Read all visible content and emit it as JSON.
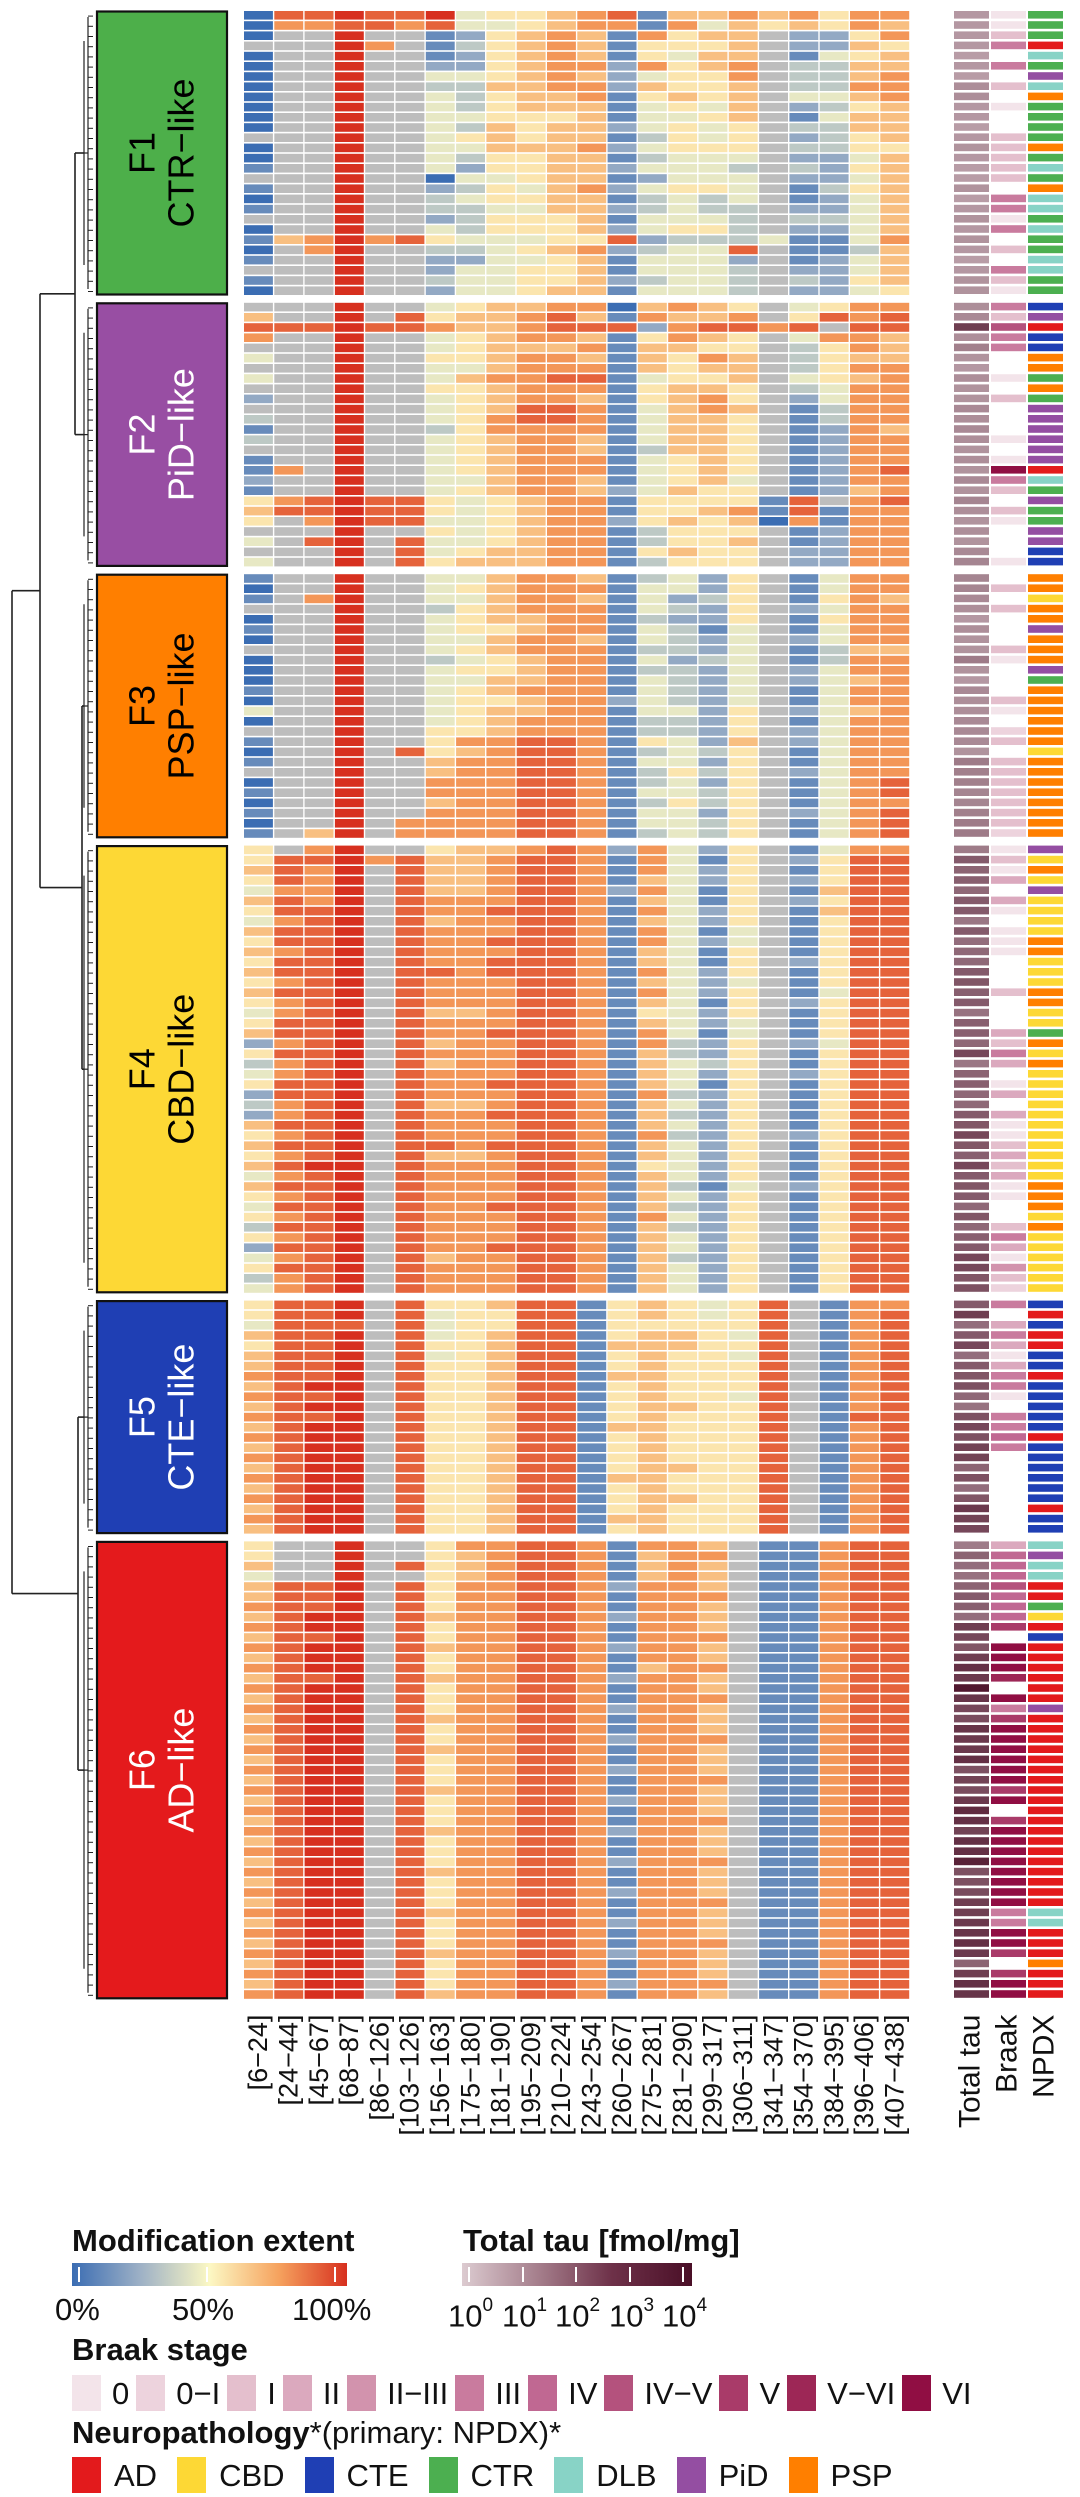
{
  "chart_data": {
    "type": "heatmap",
    "title": "",
    "columns": [
      "[6−24]",
      "[24−44]",
      "[45−67]",
      "[68−87]",
      "[86−126]",
      "[103−126]",
      "[156−163]",
      "[175−180]",
      "[181−190]",
      "[195−209]",
      "[210−224]",
      "[243−254]",
      "[260−267]",
      "[275−281]",
      "[281−290]",
      "[299−317]",
      "[306−311]",
      "[341−347]",
      "[354−370]",
      "[384−395]",
      "[396−406]",
      "[407−438]"
    ],
    "annotation_columns": [
      "Total tau",
      "Braak",
      "NPDX"
    ],
    "encoding": {
      "row_format": "heat|tau_log10_x10|braak_index|npdx_code",
      "heat": "22 digits, each 0-9 = modification extent 0%..100%, '-' = missing",
      "braak": "index into braak_stages, 'a' = 10, '.' = none",
      "npdx": {
        "A": "AD",
        "B": "CBD",
        "E": "CTE",
        "C": "CTR",
        "D": "DLB",
        "P": "PiD",
        "S": "PSP"
      }
    },
    "clusters": [
      {
        "id": "F1",
        "name": "CTR-like",
        "label_line1": "F1",
        "label_line2": "CTR−like",
        "color": "#4daf4a",
        "text_color": "#000000",
        "rows": [
          "0889889455678166767577|11|0|C",
          "0778878445677174656576|11|0|C",
          "0--9--12567617566-2257|11|2|C",
          "---97-13567615556-2265|11|5|A",
          "0--9--12567615466-1456|10|.|D",
          "0--9--22567727567-3366|11|5|C",
          "0--9--44567624557-3367|10|.|P",
          "0--9--33667726556-3377|13|2|D",
          "0--9--43566715656-4467|13|.|S",
          "0--9--43566614546-2356|11|0|C",
          "0--9--44555614456-1466|11|.|C",
          "0--9--43656624545-3366|10|.|C",
          "---9--45656613545-2356|11|2|C",
          "0--9--44666724555-3355|12|2|S",
          "0--9--43556613444-2246|11|2|C",
          "1--9--42556624443-3256|10|2|D",
          "---9--04456612444-2246|10|2|C",
          "1--9--23546724554-1356|12|.|S",
          "0--9--34556613434-1246|10|5|D",
          "1--9--33446623433-2246|11|5|D",
          "---9--23555614443-3346|12|0|C",
          "0--9--43555624553-2246|11|5|D",
          "1679785444558233341147|12|.|C",
          "0-79--33456723448-1136|11|2|C",
          "1--9--22445614442-1246|10|.|D",
          "---9--24455614443-2246|11|5|D",
          "1--9--34455623443-3256|12|2|C",
          "0--9--24456614443-2245|12|0|C"
        ]
      },
      {
        "id": "F2",
        "name": "PiD-like",
        "label_line1": "F2",
        "label_line2": "PiD−like",
        "color": "#984ea3",
        "text_color": "#ffffff",
        "rows": [
          "---9--45667706765-4577|13|5|E",
          "6--9-856678617667-5878|14|2|P",
          "8889887667888278878-88|30|7|A",
          "7--9--45677615765-4776|13|5|E",
          "---9--45666716655-3576|16|5|E",
          "4--9--55677616576-3566|12|.|S",
          "---9--44677716566-3577|11|.|S",
          "4--9--46778814556-4567|13|0|C",
          "---9--55677715665-3477|12|.|S",
          "2--9--45677615675-2477|12|2|C",
          "---9--45688714676-1377|14|.|P",
          "3--9--45788714665-1377|13|.|P",
          "1--9--35777714665-1276|14|.|P",
          "3--9--45677614665-1277|13|0|P",
          "---9--45677613665-1277|12|.|P",
          "1--9--45677714565-1277|13|0|P",
          "17-9--45677714565-1278|12|a|A",
          "2--9--44677614564-1277|14|5|D",
          "1--9--45677624655-1267|12|2|C",
          "5789885456771555518-78|15|.|P",
          "6889885456771556718177|13|2|C",
          "5-79884456772565607177|12|0|C",
          "---9--54567713555-1277|13|.|P",
          "4-89-844567713556-1277|12|.|P",
          "---9-845667715655-2277|14|.|E",
          "4--9-856667713555-2277|15|0|E"
        ]
      },
      {
        "id": "F3",
        "name": "PSP-like",
        "label_line1": "F3",
        "label_line2": "PSP−like",
        "color": "#ff7f00",
        "text_color": "#000000",
        "rows": [
          "1--9--44677613425-1477|15|.|S",
          "0--9--45677714425-1477|15|2|S",
          "1-79--44677614235-1576|14|.|B",
          "---9--35677714325-2477|13|2|S",
          "0--9--45667713225-1577|11|.|S",
          "1--9--45567714314-1477|13|.|P",
          "0--9--44677614324-2477|12|.|S",
          "---9--45677713324-1366|12|2|S",
          "0--9--34567714234-1377|17|0|S",
          "0--9--45567713324-2477|12|.|P",
          "0--9--44667714324-2467|11|.|C",
          "1--9--45677714324-1477|14|.|S",
          "0--9--45567724324-1477|13|2|S",
          "4--9--45667714425-2467|13|0|S",
          "0--9--45677713325-1477|14|.|S",
          "---9--55677713325-2477|14|1|S",
          "1--9--57788715426-2477|14|2|S",
          "0--9-856788713435-1477|12|.|B",
          "1--9--67788714425-1477|17|2|S",
          "---9--67788713535-2477|16|2|S",
          "0--9--77788713425-1478|16|2|S",
          "1--9--77788714435-1478|15|2|S",
          "0--9--67788713535-1477|15|2|S",
          "1--9--77788714425-2478|16|2|S",
          "0--9-777788714435-1478|17|2|S",
          "1-69-777788713435-1478|17|1|S"
        ]
      },
      {
        "id": "F4",
        "name": "CBD-like",
        "label_line1": "F4",
        "label_line2": "CBD−like",
        "color": "#fdd835",
        "text_color": "#000000",
        "rows": [
          "5-79--56678727425-1477|17|0|P",
          "58897866788717415-2588|24|2|B",
          "6879-866788717425-1588|22|0|S",
          "5879-866788716425-2588|23|3|B",
          "4779-866788727415-1688|21|.|P",
          "6879-877788716415-2588|24|3|B",
          "5889-877888717425-1688|24|0|B",
          "4789-867788716425-1588|18|.|B",
          "6889-877788717414-1588|24|0|B",
          "5889-877888717424-1588|20|0|S",
          "6789-877788716415-1588|21|0|S",
          "5889-877888716415-2588|21|.|B",
          "6889-887888717425-1588|24|.|B",
          "5789-877788716424-1588|25|.|B",
          "6889-877788717425-1488|23|2|S",
          "5789-877788716415-2588|24|.|S",
          "4789-866788715425-1588|19|.|B",
          "5889-877788716424-1588|23|.|B",
          "6889-877888717414-1588|23|3|C",
          "2789-867788717325-2488|21|2|S",
          "5889-877788716325-1588|28|5|B",
          "3789-867788716435-1588|18|3|S",
          "4789-877788716425-2588|22|.|B",
          "5889-877888716415-1588|23|0|B",
          "2889-877788717325-1588|21|3|B",
          "3789-866788716425-1588|21|.|B",
          "2789-877888716325-1588|24|3|B",
          "6889-877788716425-1588|25|0|B",
          "5789-877788717325-2588|28|0|B",
          "6889-887888716425-1588|25|2|B",
          "5789-866788716425-1588|23|3|B",
          "6899-877788715425-1588|28|2|B",
          "4789-877788716425-1588|24|3|B",
          "6889-877788716314-2588|25|0|S",
          "5789-877788716425-1588|24|0|S",
          "4889-877888716325-1588|21|.|S",
          "5789-877788717425-1588|25|.|B",
          "3889-877788716325-1588|21|2|S",
          "5789-877788716425-1588|23|5|B",
          "2889-877888716425-1588|24|3|B",
          "4789-867788716325-1588|28|0|B",
          "5889-877788716425-1588|28|4|B",
          "3789-877788716425-1588|25|2|B",
          "4789-877788716425-1588|26|1|B"
        ]
      },
      {
        "id": "F5",
        "name": "CTE-like",
        "label_line1": "F5",
        "label_line2": "CTE−like",
        "color": "#1f3fb4",
        "text_color": "#ffffff",
        "rows": [
          "5889-8556881565458-177|24|5|E",
          "5889-8455881565458-178|30|.|A",
          "4888-8455881555558-178|20|3|E",
          "6889-8456881566548-178|24|5|A",
          "5889-8556881666558-178|28|3|A",
          "6889-8456881565548-178|20|0|E",
          "6889-8556881565558-178|24|3|E",
          "7889-8556881665558-178|25|5|A",
          "6899-8556881565558-178|26|5|E",
          "7889-8556881565548-178|21|0|E",
          "6899-8556881566558-178|19|.|E",
          "7889-8556881565558-188|26|5|E",
          "6899-8556881665558-178|28|5|E",
          "7899-8556881565558-178|26|6|A",
          "6899-8556881565558-178|29|5|E",
          "7899-8556881565558-178|29|.|E",
          "6899-8556881566558-178|22|.|E",
          "7899-8556881665558-178|26|.|E",
          "6899-8556881565558-178|20|.|E",
          "7899-8556881566558-178|25|.|E",
          "6899-8556881565558-178|31|.|A",
          "7899-8556881665558-178|29|.|E",
          "6899-8556881565558-178|28|.|E"
        ]
      },
      {
        "id": "F6",
        "name": "AD-like",
        "label_line1": "F6",
        "label_line2": "AD−like",
        "color": "#e41a1c",
        "text_color": "#ffffff",
        "rows": [
          "5--9--5778871776-11788|17|3|D",
          "5--9--5678871677-11788|22|6|P",
          "6--9-85678871676-11788|20|6|D",
          "4--9--5678871676-11788|19|6|D",
          "6889-85778872776-11788|22|7|A",
          "6889-85778871777-11788|24|6|A",
          "7889-85778871776-11788|23|6|C",
          "6899-86778872776-11788|20|6|B",
          "7899-85778871776-11788|30|8|A",
          "6889-85778871777-11788|28|.|E",
          "7899-86778872776-11788|25|a|A",
          "6899-85778871776-11788|30|a|A",
          "7899-85778871677-11788|33|a|A",
          "6889-86778872776-11788|31|9|A",
          "7899-85778871776-11788|38|.|A",
          "6899-85778871777-11788|32|a|A",
          "7899-85778872776-11788|28|5|P",
          "6899-86778871776-11788|27|8|A",
          "7899-85778871776-11788|32|a|A",
          "6899-85778872777-11788|31|a|A",
          "7899-86778871776-11788|31|a|A",
          "6899-85778871776-11788|33|a|A",
          "7899-85778872776-11788|26|a|A",
          "6899-85778871777-11788|29|a|A",
          "7899-86778871776-11788|27|8|A",
          "6899-85778872776-11788|31|a|A",
          "7899-85778871776-11788|34|.|A",
          "6899-85778871777-11788|33|8|A",
          "7899-86778872776-11788|29|a|A",
          "6899-85778871776-11788|33|a|A",
          "7899-85778871776-11788|33|a|A",
          "6899-85778872777-11788|36|a|A",
          "7899-86778871776-11788|26|a|A",
          "6899-85778871776-11788|26|a|A",
          "7899-85778872776-11788|27|a|A",
          "6899-85778871777-11788|30|a|A",
          "7899-86778871776-11788|30|5|D",
          "6899-85778872776-11788|31|5|D",
          "7899-85778871776-11788|32|a|A",
          "6899-85778871777-11788|33|a|A",
          "7899-86778872776-11788|31|8|A",
          "6899-85778871776-11788|22|.|S",
          "7899-85778871776-11788|30|8|A",
          "6899-85778872777-11788|33|a|A",
          "7899-86778871776-11788|32|a|A"
        ]
      }
    ],
    "color_scales": {
      "modification": {
        "stops": [
          "#3b6db3",
          "#9eb1c6",
          "#fcf8c4",
          "#f6a35f",
          "#d7301f"
        ],
        "missing": "#bdbdbd"
      },
      "total_tau": {
        "low": "#dccbd0",
        "high": "#4a0f27"
      }
    }
  },
  "legend": {
    "modification": {
      "title": "Modification extent",
      "ticks": [
        "0%",
        "50%",
        "100%"
      ]
    },
    "total_tau": {
      "title": "Total tau [fmol/mg]",
      "ticks": [
        {
          "base": "10",
          "exp": "0"
        },
        {
          "base": "10",
          "exp": "1"
        },
        {
          "base": "10",
          "exp": "2"
        },
        {
          "base": "10",
          "exp": "3"
        },
        {
          "base": "10",
          "exp": "4"
        }
      ]
    },
    "braak": {
      "title": "Braak stage",
      "stages": [
        {
          "label": "0",
          "color": "#f3e4ea"
        },
        {
          "label": "0−I",
          "color": "#edd3dd"
        },
        {
          "label": "I",
          "color": "#e4bfcd"
        },
        {
          "label": "II",
          "color": "#dba9be"
        },
        {
          "label": "II−III",
          "color": "#d293ad"
        },
        {
          "label": "III",
          "color": "#c97b9e"
        },
        {
          "label": "IV",
          "color": "#c06892"
        },
        {
          "label": "IV−V",
          "color": "#b4527d"
        },
        {
          "label": "V",
          "color": "#a93b69"
        },
        {
          "label": "V−VI",
          "color": "#9d2756"
        },
        {
          "label": "VI",
          "color": "#900e43"
        }
      ]
    },
    "neuropathology": {
      "title": "Neuropathology",
      "subtitle": "*(primary: NPDX)*",
      "items": [
        {
          "code": "A",
          "label": "AD",
          "color": "#e31a1c"
        },
        {
          "code": "B",
          "label": "CBD",
          "color": "#fdd835"
        },
        {
          "code": "E",
          "label": "CTE",
          "color": "#1f3fb4"
        },
        {
          "code": "C",
          "label": "CTR",
          "color": "#4caf50"
        },
        {
          "code": "D",
          "label": "DLB",
          "color": "#88d3c6"
        },
        {
          "code": "P",
          "label": "PiD",
          "color": "#944ea2"
        },
        {
          "code": "S",
          "label": "PSP",
          "color": "#ff7f00"
        }
      ]
    }
  }
}
